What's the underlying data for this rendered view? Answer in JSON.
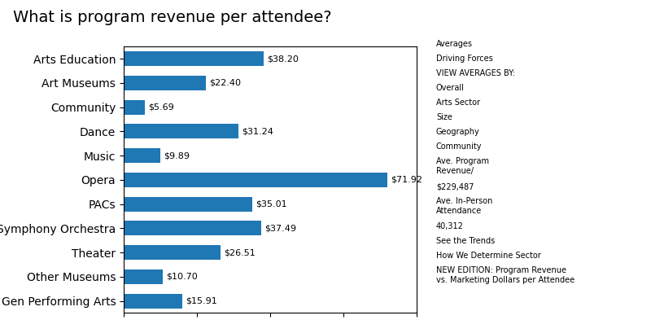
{
  "chart_data": {
    "type": "bar",
    "orientation": "horizontal",
    "title": "What is program revenue per attendee?",
    "categories": [
      "Arts Education",
      "Art Museums",
      "Community",
      "Dance",
      "Music",
      "Opera",
      "PACs",
      "Symphony Orchestra",
      "Theater",
      "Other Museums",
      "Gen Performing Arts"
    ],
    "values": [
      38.2,
      22.4,
      5.69,
      31.24,
      9.89,
      71.92,
      35.01,
      37.49,
      26.51,
      10.7,
      15.91
    ],
    "value_labels": [
      "$38.20",
      "$22.40",
      "$5.69",
      "$31.24",
      "$9.89",
      "$71.92",
      "$35.01",
      "$37.49",
      "$26.51",
      "$10.70",
      "$15.91"
    ],
    "data_labels": true,
    "xlim": [
      0,
      80
    ],
    "xticks": [
      0,
      20,
      40,
      60,
      80
    ],
    "tick_labels": "y",
    "grid": false,
    "annotations": [
      "Averages",
      "Driving Forces",
      "VIEW AVERAGES BY:",
      "Overall",
      "Arts Sector",
      "Size",
      "Geography",
      "Community",
      "Ave. Program\nRevenue/",
      "$229,487",
      "Ave. In-Person\nAttendance",
      "40,312",
      "See the Trends",
      "How We Determine Sector",
      "NEW EDITION: Program Revenue\nvs. Marketing Dollars per Attendee"
    ]
  }
}
